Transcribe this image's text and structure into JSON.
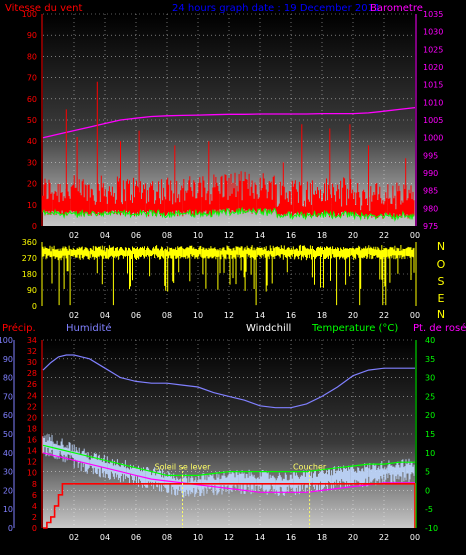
{
  "header": {
    "wind_title": "Vitesse du vent",
    "date_title": "24 hours graph date : 19 December 2011",
    "baro_title": "Barometre"
  },
  "section3": {
    "precip_label": "Précip.",
    "humidity_label": "Humidité",
    "windchill_label": "Windchill",
    "temp_label": "Temperature (°C)",
    "dew_label": "Pt. de rosée",
    "sunrise_label": "Soleil se lever",
    "sunset_label": "Coucher"
  },
  "direction_letters": [
    "N",
    "O",
    "S",
    "E",
    "N"
  ],
  "colors": {
    "wind": "#ff0000",
    "gust_low": "#00ff00",
    "barometer": "#ff00ff",
    "direction": "#ffff00",
    "humidity": "#8080ff",
    "temperature": "#00ff00",
    "dew": "#ff00ff",
    "windchill": "#c0d8ff",
    "precip": "#ff0000",
    "grid": "#ffffff",
    "label_blue": "#0000ff"
  },
  "chart_data": [
    {
      "type": "line",
      "name": "wind-barometer",
      "x_ticks": [
        "02",
        "04",
        "06",
        "08",
        "10",
        "12",
        "14",
        "16",
        "18",
        "20",
        "22",
        "00"
      ],
      "left_axis": {
        "ticks": [
          0,
          10,
          20,
          30,
          40,
          50,
          60,
          70,
          80,
          90,
          100
        ],
        "ylim": [
          0,
          100
        ]
      },
      "right_axis": {
        "ticks": [
          975,
          980,
          985,
          990,
          995,
          1000,
          1005,
          1010,
          1015,
          1020,
          1025,
          1030,
          1035
        ],
        "ylim": [
          975,
          1035
        ]
      },
      "series": [
        {
          "x": [
            0,
            1,
            2,
            3,
            4,
            5,
            6,
            7,
            8,
            9,
            10,
            11,
            12,
            13,
            14,
            15,
            16,
            17,
            18,
            19,
            20,
            21,
            22,
            23,
            24
          ],
          "values": [
            1000,
            1001,
            1002,
            1003,
            1004,
            1005,
            1005.5,
            1006,
            1006.2,
            1006.3,
            1006.4,
            1006.5,
            1006.6,
            1006.6,
            1006.7,
            1006.7,
            1006.7,
            1006.7,
            1006.8,
            1006.8,
            1006.8,
            1007,
            1007.5,
            1008,
            1008.5
          ]
        }
      ],
      "spikes": [
        [
          1.5,
          55
        ],
        [
          2.2,
          42
        ],
        [
          3.5,
          68
        ],
        [
          5.0,
          40
        ],
        [
          6.2,
          45
        ],
        [
          8.5,
          38
        ],
        [
          10.7,
          40
        ],
        [
          15.5,
          30
        ],
        [
          16.7,
          48
        ],
        [
          18.5,
          46
        ],
        [
          19.8,
          48
        ],
        [
          21.0,
          38
        ],
        [
          23.4,
          32
        ]
      ]
    },
    {
      "type": "scatter",
      "name": "wind-direction",
      "x_ticks": [
        "02",
        "04",
        "06",
        "08",
        "10",
        "12",
        "14",
        "16",
        "18",
        "20",
        "22",
        "00"
      ],
      "left_axis": {
        "ticks": [
          0,
          90,
          180,
          270,
          360
        ],
        "ylim": [
          0,
          360
        ]
      }
    },
    {
      "type": "line",
      "name": "humidity-temperature",
      "x_ticks": [
        "02",
        "04",
        "06",
        "08",
        "10",
        "12",
        "14",
        "16",
        "18",
        "20",
        "22",
        "00"
      ],
      "humidity_axis": {
        "ticks": [
          0,
          10,
          20,
          30,
          40,
          50,
          60,
          70,
          80,
          90,
          100
        ],
        "ylim": [
          0,
          100
        ]
      },
      "precip_axis": {
        "ticks": [
          0,
          2,
          4,
          6,
          8,
          10,
          12,
          14,
          16,
          18,
          20,
          22,
          24,
          26,
          28,
          30,
          32,
          34
        ],
        "ylim": [
          0,
          34
        ]
      },
      "temp_axis": {
        "ticks": [
          -10,
          -5,
          0,
          5,
          10,
          15,
          20,
          25,
          30,
          35,
          40
        ],
        "ylim": [
          -10,
          40
        ]
      },
      "series": [
        {
          "x": [
            0,
            0.5,
            1,
            1.5,
            2,
            2.5,
            3,
            4,
            5,
            6,
            7,
            8,
            9,
            10,
            11,
            12,
            13,
            14,
            15,
            16,
            17,
            18,
            19,
            20,
            21,
            22,
            23,
            24
          ],
          "values": [
            84,
            88,
            91,
            92,
            92,
            91,
            90,
            85,
            80,
            78,
            77,
            77,
            76,
            75,
            72,
            70,
            68,
            65,
            64,
            64,
            66,
            70,
            75,
            81,
            84,
            85,
            85,
            85
          ]
        },
        {
          "x": [
            0,
            1,
            2,
            3,
            4,
            5,
            6,
            7,
            8,
            9,
            10,
            11,
            12,
            13,
            14,
            15,
            16,
            17,
            18,
            19,
            20,
            21,
            22,
            23,
            24
          ],
          "values": [
            12,
            11,
            10,
            9,
            8,
            7,
            6,
            5,
            4,
            4,
            4,
            4.5,
            5,
            5,
            5,
            5,
            5,
            5,
            5.5,
            6,
            6.5,
            7,
            7,
            7.5,
            7.5
          ]
        },
        {
          "x": [
            0,
            1,
            2,
            3,
            4,
            5,
            6,
            7,
            8,
            9,
            10,
            11,
            12,
            13,
            14,
            15,
            16,
            17,
            18,
            19,
            20,
            21,
            22,
            23,
            24
          ],
          "values": [
            10,
            9,
            8,
            7,
            6,
            5,
            4,
            3,
            2.5,
            2,
            1.5,
            1,
            0.5,
            0,
            -0.5,
            -0.5,
            -0.5,
            -0.5,
            0,
            0.5,
            1,
            1.5,
            2,
            2,
            2
          ]
        },
        {
          "x": [
            0,
            1,
            2,
            3,
            4,
            5,
            6,
            7,
            8,
            9,
            10,
            11,
            12,
            13,
            14,
            15,
            16,
            17,
            18,
            19,
            20,
            21,
            22,
            23,
            24
          ],
          "values": [
            13,
            12,
            10,
            8,
            7,
            6,
            5,
            4,
            3,
            2,
            2,
            2.5,
            3,
            3,
            3,
            2.5,
            2.5,
            3,
            3.5,
            4,
            4.5,
            5,
            5.5,
            6,
            6
          ]
        }
      ],
      "precip_steps": {
        "x": [
          0,
          0.25,
          0.5,
          0.75,
          1,
          1.25,
          24
        ],
        "values": [
          0,
          1,
          2,
          4,
          6,
          8,
          8
        ]
      },
      "sunrise_x": 9.0,
      "sunset_x": 17.2
    }
  ]
}
